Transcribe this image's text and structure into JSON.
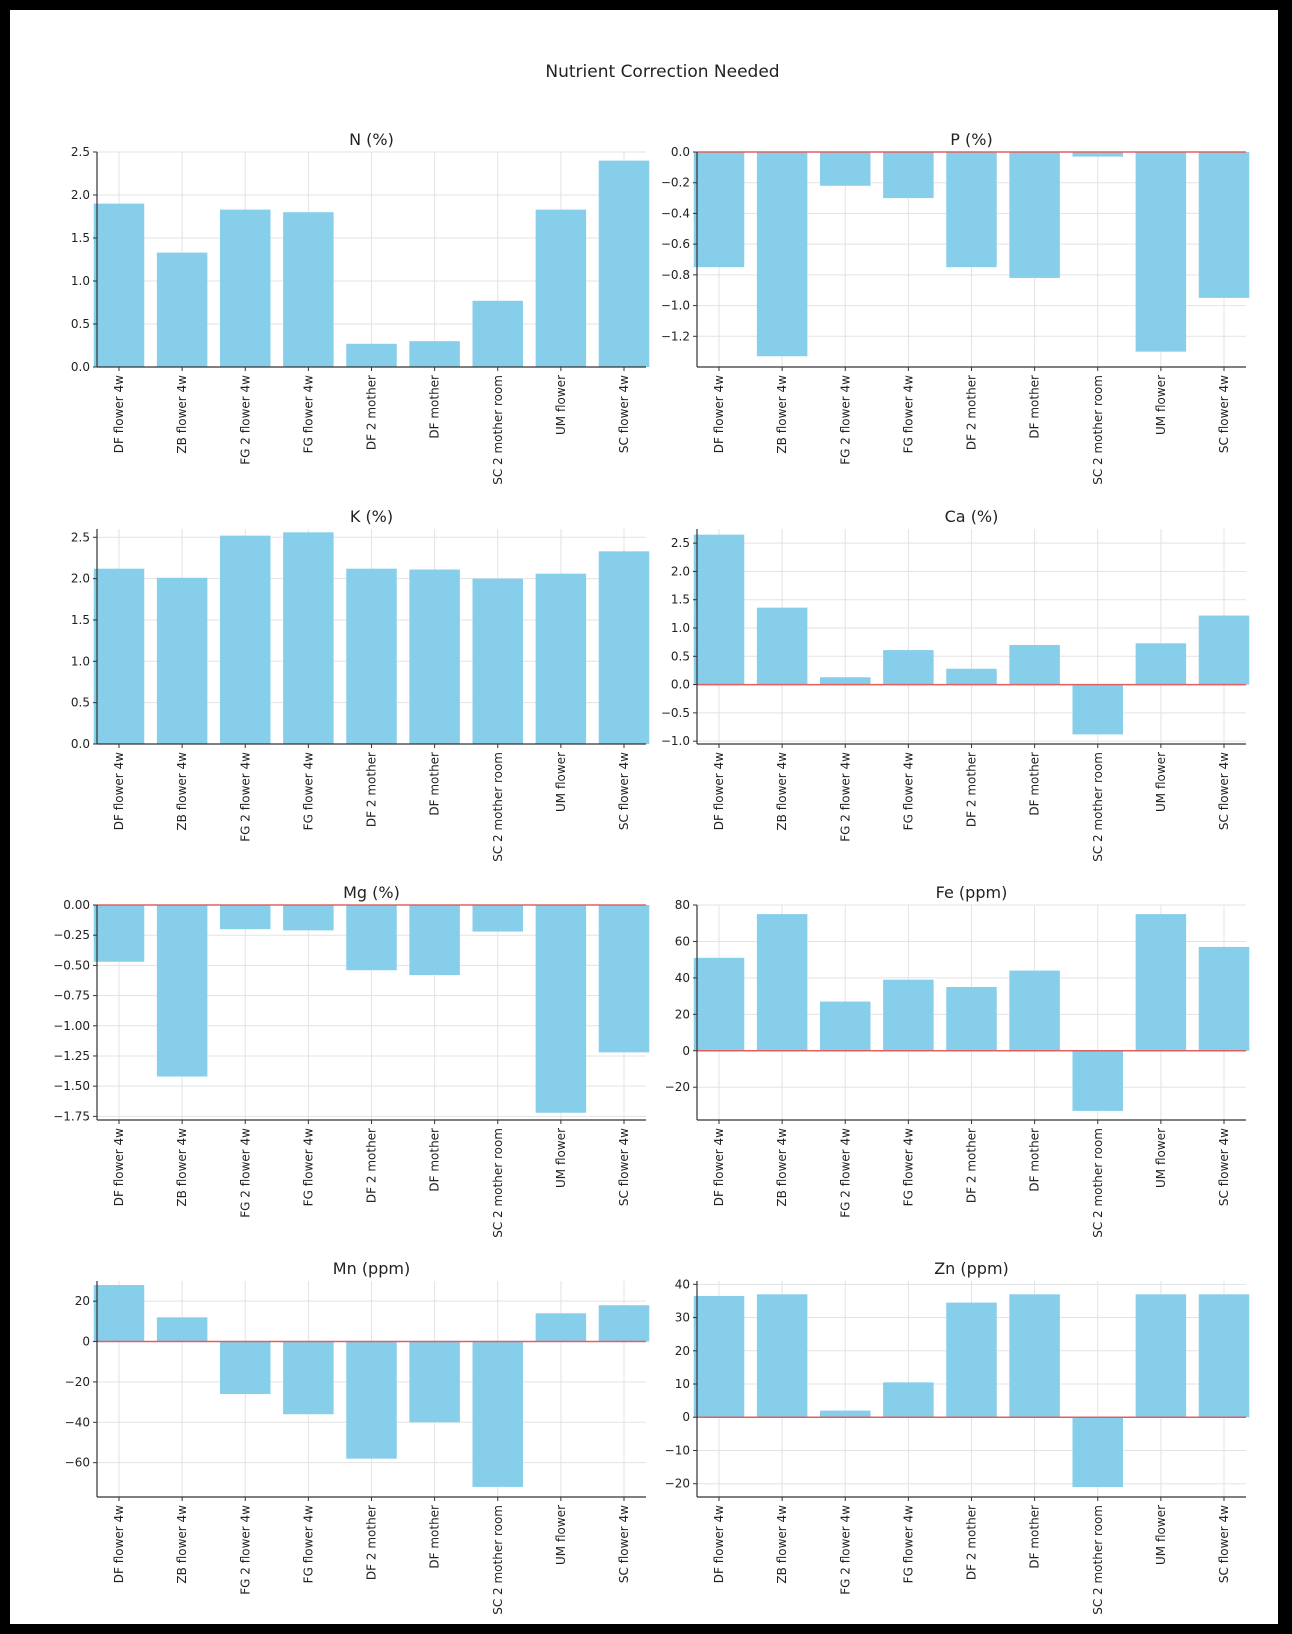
{
  "figure": {
    "title": "Nutrient Correction Needed"
  },
  "style": {
    "bar_color": "#87CEEB",
    "zero_line_color": "#E06060",
    "grid_color": "#E3E3E3"
  },
  "chart_data": [
    {
      "type": "bar",
      "title": "N (%)",
      "ylim": [
        0,
        2.5
      ],
      "yticks": [
        0.0,
        0.5,
        1.0,
        1.5,
        2.0,
        2.5
      ],
      "ytick_labels": [
        "0.0",
        "0.5",
        "1.0",
        "1.5",
        "2.0",
        "2.5"
      ],
      "categories": [
        "DF flower 4w",
        "ZB flower 4w",
        "FG 2 flower 4w",
        "FG flower 4w",
        "DF 2 mother",
        "DF mother",
        "SC 2 mother room",
        "UM flower",
        "SC flower 4w"
      ],
      "values": [
        1.9,
        1.33,
        1.83,
        1.8,
        0.27,
        0.3,
        0.77,
        1.83,
        2.4
      ],
      "zero_line": false,
      "grid": true
    },
    {
      "type": "bar",
      "title": "P (%)",
      "ylim": [
        -1.4,
        0.0
      ],
      "yticks": [
        0.0,
        -0.2,
        -0.4,
        -0.6,
        -0.8,
        -1.0,
        -1.2
      ],
      "ytick_labels": [
        "0.0",
        "−0.2",
        "−0.4",
        "−0.6",
        "−0.8",
        "−1.0",
        "−1.2"
      ],
      "categories": [
        "DF flower 4w",
        "ZB flower 4w",
        "FG 2 flower 4w",
        "FG flower 4w",
        "DF 2 mother",
        "DF mother",
        "SC 2 mother room",
        "UM flower",
        "SC flower 4w"
      ],
      "values": [
        -0.75,
        -1.33,
        -0.22,
        -0.3,
        -0.75,
        -0.82,
        -0.03,
        -1.3,
        -0.95
      ],
      "zero_line": true,
      "grid": true
    },
    {
      "type": "bar",
      "title": "K (%)",
      "ylim": [
        0,
        2.6
      ],
      "yticks": [
        0.0,
        0.5,
        1.0,
        1.5,
        2.0,
        2.5
      ],
      "ytick_labels": [
        "0.0",
        "0.5",
        "1.0",
        "1.5",
        "2.0",
        "2.5"
      ],
      "categories": [
        "DF flower 4w",
        "ZB flower 4w",
        "FG 2 flower 4w",
        "FG flower 4w",
        "DF 2 mother",
        "DF mother",
        "SC 2 mother room",
        "UM flower",
        "SC flower 4w"
      ],
      "values": [
        2.12,
        2.01,
        2.52,
        2.56,
        2.12,
        2.11,
        2.0,
        2.06,
        2.33
      ],
      "zero_line": false,
      "grid": true
    },
    {
      "type": "bar",
      "title": "Ca (%)",
      "ylim": [
        -1.05,
        2.75
      ],
      "yticks": [
        2.5,
        2.0,
        1.5,
        1.0,
        0.5,
        0.0,
        -0.5,
        -1.0
      ],
      "ytick_labels": [
        "2.5",
        "2.0",
        "1.5",
        "1.0",
        "0.5",
        "0.0",
        "−0.5",
        "−1.0"
      ],
      "categories": [
        "DF flower 4w",
        "ZB flower 4w",
        "FG 2 flower 4w",
        "FG flower 4w",
        "DF 2 mother",
        "DF mother",
        "SC 2 mother room",
        "UM flower",
        "SC flower 4w"
      ],
      "values": [
        2.65,
        1.36,
        0.13,
        0.61,
        0.28,
        0.7,
        -0.88,
        0.73,
        1.22
      ],
      "zero_line": true,
      "grid": true
    },
    {
      "type": "bar",
      "title": "Mg (%)",
      "ylim": [
        -1.78,
        0.0
      ],
      "yticks": [
        0.0,
        -0.25,
        -0.5,
        -0.75,
        -1.0,
        -1.25,
        -1.5,
        -1.75
      ],
      "ytick_labels": [
        "0.00",
        "−0.25",
        "−0.50",
        "−0.75",
        "−1.00",
        "−1.25",
        "−1.50",
        "−1.75"
      ],
      "categories": [
        "DF flower 4w",
        "ZB flower 4w",
        "FG 2 flower 4w",
        "FG flower 4w",
        "DF 2 mother",
        "DF mother",
        "SC 2 mother room",
        "UM flower",
        "SC flower 4w"
      ],
      "values": [
        -0.47,
        -1.42,
        -0.2,
        -0.21,
        -0.54,
        -0.58,
        -0.22,
        -1.72,
        -1.22
      ],
      "zero_line": true,
      "grid": true
    },
    {
      "type": "bar",
      "title": "Fe (ppm)",
      "ylim": [
        -38,
        80
      ],
      "yticks": [
        80,
        60,
        40,
        20,
        0,
        -20
      ],
      "ytick_labels": [
        "80",
        "60",
        "40",
        "20",
        "0",
        "−20"
      ],
      "categories": [
        "DF flower 4w",
        "ZB flower 4w",
        "FG 2 flower 4w",
        "FG flower 4w",
        "DF 2 mother",
        "DF mother",
        "SC 2 mother room",
        "UM flower",
        "SC flower 4w"
      ],
      "values": [
        51,
        75,
        27,
        39,
        35,
        44,
        -33,
        75,
        57
      ],
      "zero_line": true,
      "grid": true
    },
    {
      "type": "bar",
      "title": "Mn (ppm)",
      "ylim": [
        -77,
        30
      ],
      "yticks": [
        20,
        0,
        -20,
        -40,
        -60
      ],
      "ytick_labels": [
        "20",
        "0",
        "−20",
        "−40",
        "−60"
      ],
      "categories": [
        "DF flower 4w",
        "ZB flower 4w",
        "FG 2 flower 4w",
        "FG flower 4w",
        "DF 2 mother",
        "DF mother",
        "SC 2 mother room",
        "UM flower",
        "SC flower 4w"
      ],
      "values": [
        28,
        12,
        -26,
        -36,
        -58,
        -40,
        -72,
        14,
        18
      ],
      "zero_line": true,
      "grid": true
    },
    {
      "type": "bar",
      "title": "Zn (ppm)",
      "ylim": [
        -24,
        41
      ],
      "yticks": [
        40,
        30,
        20,
        10,
        0,
        -10,
        -20
      ],
      "ytick_labels": [
        "40",
        "30",
        "20",
        "10",
        "0",
        "−10",
        "−20"
      ],
      "categories": [
        "DF flower 4w",
        "ZB flower 4w",
        "FG 2 flower 4w",
        "FG flower 4w",
        "DF 2 mother",
        "DF mother",
        "SC 2 mother room",
        "UM flower",
        "SC flower 4w"
      ],
      "values": [
        36.5,
        37,
        2,
        10.5,
        34.5,
        37,
        -21,
        37,
        37
      ],
      "zero_line": true,
      "grid": true
    }
  ]
}
